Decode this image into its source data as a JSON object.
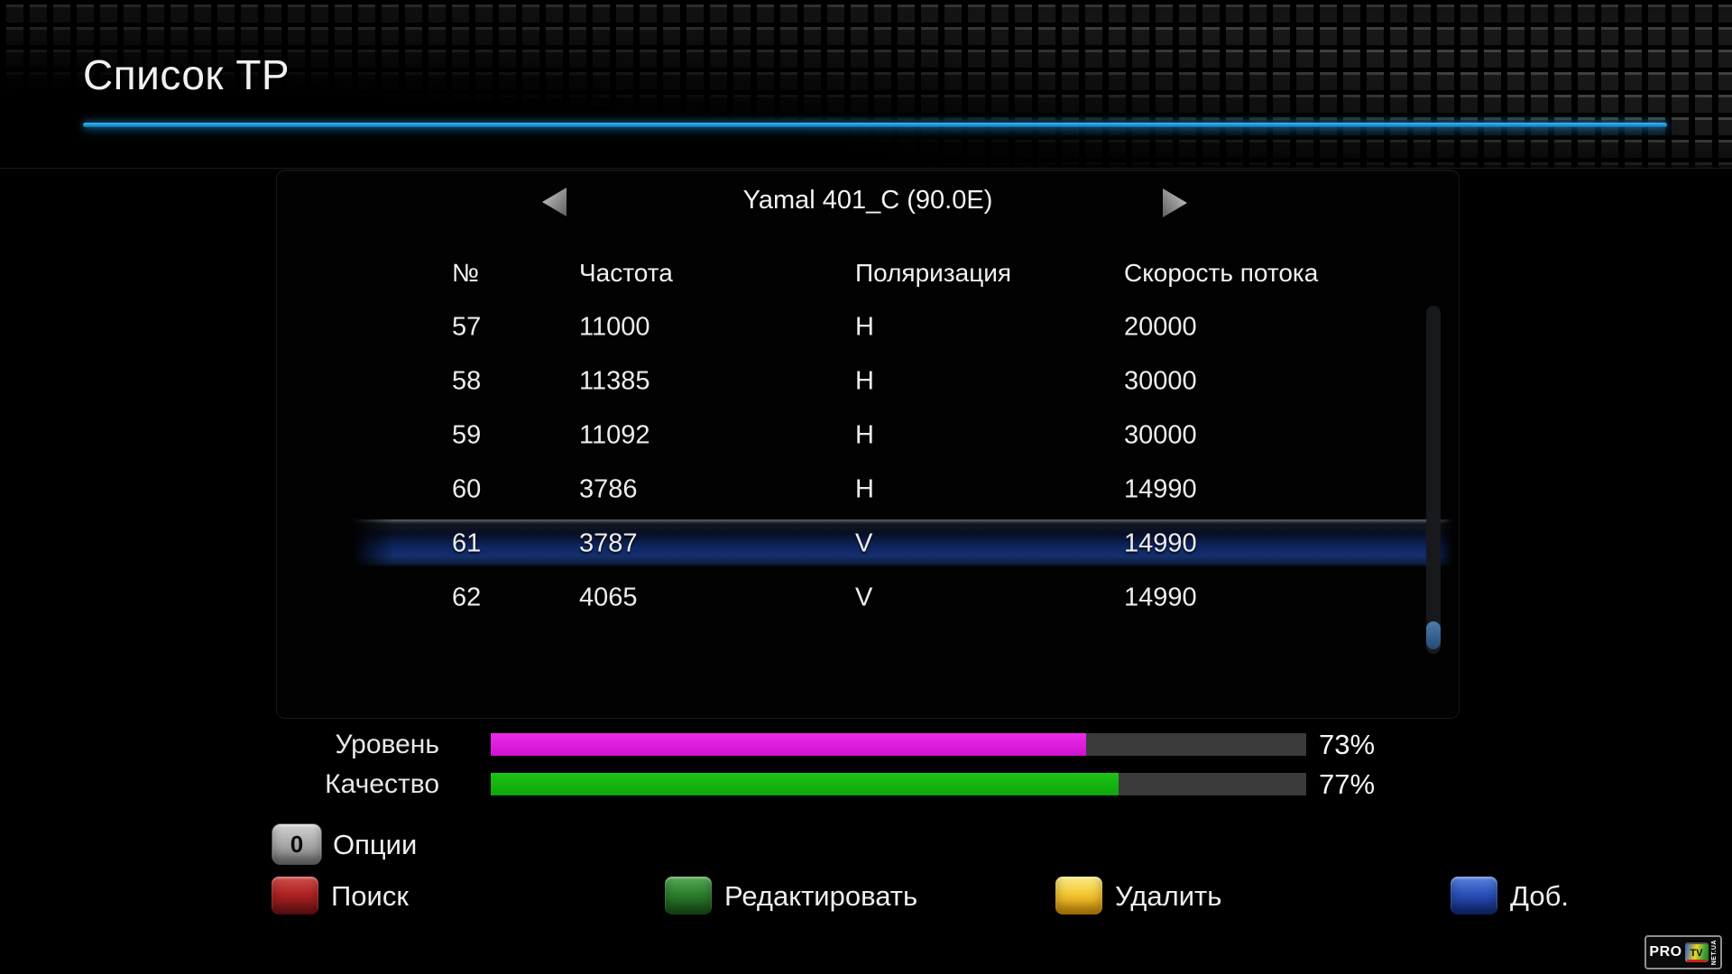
{
  "page_title": "Список ТР",
  "satellite_selector": {
    "name": "Yamal 401_C (90.0E)",
    "prev_icon": "arrow-left",
    "next_icon": "arrow-right"
  },
  "table": {
    "columns": [
      "№",
      "Частота",
      "Поляризация",
      "Скорость потока"
    ],
    "rows": [
      {
        "num": "57",
        "freq": "11000",
        "pol": "H",
        "sr": "20000",
        "selected": false
      },
      {
        "num": "58",
        "freq": "11385",
        "pol": "H",
        "sr": "30000",
        "selected": false
      },
      {
        "num": "59",
        "freq": "11092",
        "pol": "H",
        "sr": "30000",
        "selected": false
      },
      {
        "num": "60",
        "freq": "3786",
        "pol": "H",
        "sr": "14990",
        "selected": false
      },
      {
        "num": "61",
        "freq": "3787",
        "pol": "V",
        "sr": "14990",
        "selected": true
      },
      {
        "num": "62",
        "freq": "4065",
        "pol": "V",
        "sr": "14990",
        "selected": false
      }
    ]
  },
  "signal": {
    "level": {
      "label": "Уровень",
      "percent": 73,
      "text": "73%",
      "color": "#d912d9"
    },
    "quality": {
      "label": "Качество",
      "percent": 77,
      "text": "77%",
      "color": "#12b20e"
    }
  },
  "options_key": {
    "key": "0",
    "label": "Опции"
  },
  "color_keys": [
    {
      "name": "red",
      "hex": "#b02323",
      "label": "Поиск"
    },
    {
      "name": "green",
      "hex": "#2e7f2e",
      "label": "Редактировать"
    },
    {
      "name": "yellow",
      "hex": "#f3c735",
      "label": "Удалить"
    },
    {
      "name": "blue",
      "hex": "#2b51ba",
      "label": "Доб."
    }
  ],
  "watermark": {
    "brand": "PRO",
    "tv": "TV",
    "suffix": "NET.UA"
  },
  "colors": {
    "accent_line": "#1d95d6",
    "selected_row": "#0f2864",
    "bar_track": "#3b3b3b",
    "scroll_thumb": "#35618f"
  }
}
